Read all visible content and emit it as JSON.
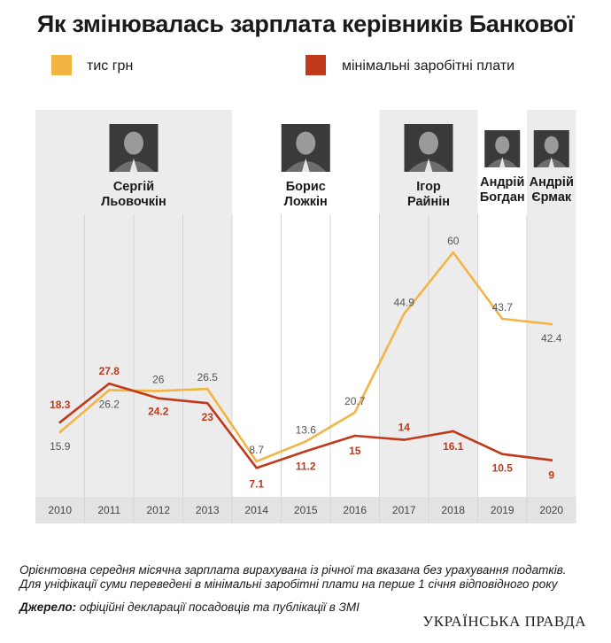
{
  "title": "Як змінювалась зарплата керівників Банкової",
  "legend": [
    {
      "label": "тис грн",
      "color": "#f2b544"
    },
    {
      "label": "мінімальні заробітні плати",
      "color": "#c0391b"
    }
  ],
  "periods": [
    {
      "name_line1": "Сергій",
      "name_line2": "Льовочкін",
      "start": 2010,
      "end": 2013,
      "shaded": true
    },
    {
      "name_line1": "Борис",
      "name_line2": "Ложкін",
      "start": 2014,
      "end": 2016,
      "shaded": false
    },
    {
      "name_line1": "Ігор",
      "name_line2": "Райнін",
      "start": 2017,
      "end": 2018,
      "shaded": true
    },
    {
      "name_line1": "Андрій",
      "name_line2": "Богдан",
      "start": 2019,
      "end": 2019,
      "shaded": false
    },
    {
      "name_line1": "Андрій",
      "name_line2": "Єрмак",
      "start": 2020,
      "end": 2020,
      "shaded": true
    }
  ],
  "chart_data": {
    "type": "line",
    "x": [
      2010,
      2011,
      2012,
      2013,
      2014,
      2015,
      2016,
      2017,
      2018,
      2019,
      2020
    ],
    "series": [
      {
        "name": "тис грн",
        "color": "#f2b544",
        "values": [
          15.9,
          26.2,
          26,
          26.5,
          8.7,
          13.6,
          20.7,
          44.9,
          60,
          43.7,
          42.4
        ],
        "labels": [
          "15.9",
          "26.2",
          "26",
          "26.5",
          "8.7",
          "13.6",
          "20.7",
          "44.9",
          "60",
          "43.7",
          "42.4"
        ]
      },
      {
        "name": "мінімальні заробітні плати",
        "color": "#c0391b",
        "values": [
          18.3,
          27.8,
          24.2,
          23,
          7.1,
          11.2,
          15,
          14,
          16.1,
          10.5,
          9
        ],
        "labels": [
          "18.3",
          "27.8",
          "24.2",
          "23",
          "7.1",
          "11.2",
          "15",
          "14",
          "16.1",
          "10.5",
          "9"
        ]
      }
    ],
    "ylim": [
      0,
      70
    ],
    "grid": true
  },
  "notes": {
    "line1": "Орієнтовна середня місячна зарплата вирахувана із річної та вказана без урахування податків.",
    "line2": "Для уніфікації суми переведені в мінімальні заробітні плати на перше 1 січня відповідного року",
    "source_label": "Джерело:",
    "source_text": " офіційні декларації посадовців та публікації в ЗМІ"
  },
  "brand": "УКРАЇНСЬКА ПРАВДА"
}
